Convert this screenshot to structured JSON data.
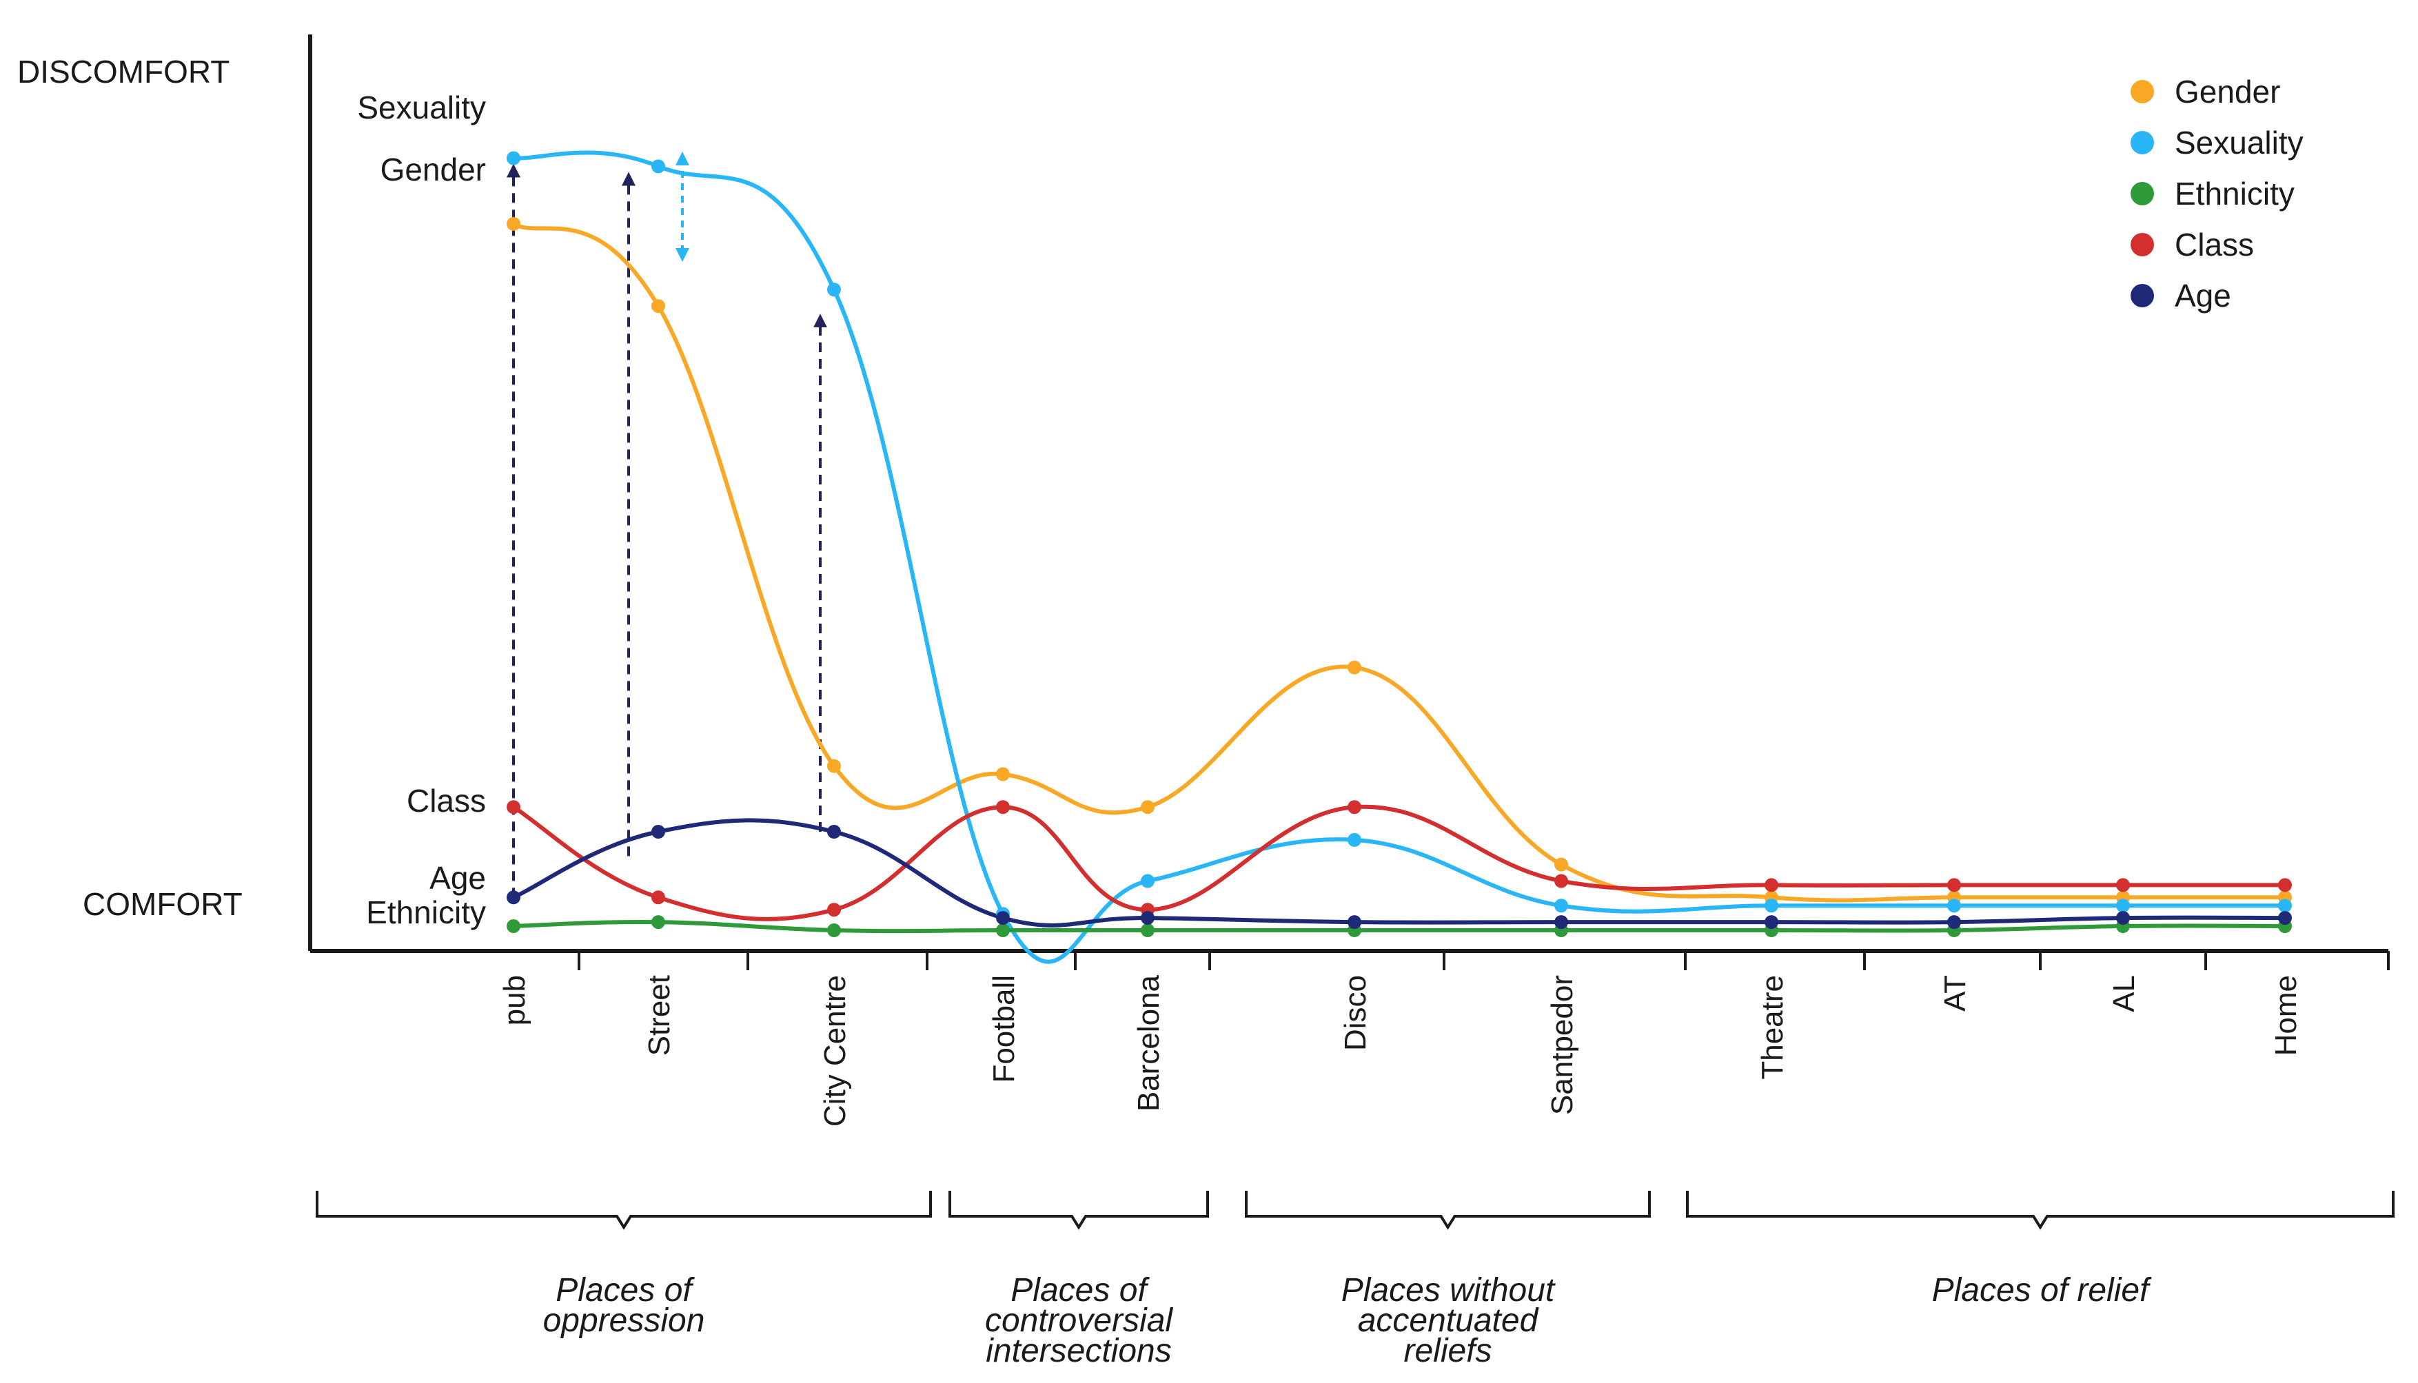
{
  "chart_data": {
    "type": "line",
    "y_top_label": "DISCOMFORT",
    "y_bottom_label": "COMFORT",
    "ylim": [
      0,
      100
    ],
    "categories": [
      "pub",
      "Street",
      "City Centre",
      "Football",
      "Barcelona",
      "Disco",
      "Santpedor",
      "Theatre",
      "AT",
      "AL",
      "Home"
    ],
    "series": [
      {
        "name": "Gender",
        "color": "#f9a825",
        "values": [
          86,
          76,
          20,
          19,
          15,
          32,
          8,
          4,
          4,
          4,
          4
        ]
      },
      {
        "name": "Sexuality",
        "color": "#29b6f6",
        "values": [
          94,
          93,
          78,
          2,
          6,
          11,
          3,
          3,
          3,
          3,
          3
        ]
      },
      {
        "name": "Ethnicity",
        "color": "#2e9a3a",
        "values": [
          0.5,
          1,
          0,
          0,
          0,
          0,
          0,
          0,
          0,
          0.5,
          0.5
        ]
      },
      {
        "name": "Class",
        "color": "#d32f2f",
        "values": [
          15,
          4,
          2.5,
          15,
          2.5,
          15,
          6,
          5.5,
          5.5,
          5.5,
          5.5
        ]
      },
      {
        "name": "Age",
        "color": "#1e2a78",
        "values": [
          4,
          12,
          12,
          1.5,
          1.5,
          1,
          1,
          1,
          1,
          1.5,
          1.5
        ]
      }
    ],
    "line_labels": [
      {
        "text": "Sexuality",
        "series": "Sexuality"
      },
      {
        "text": "Gender",
        "series": "Gender"
      },
      {
        "text": "Class",
        "series": "Class"
      },
      {
        "text": "Age",
        "series": "Age"
      },
      {
        "text": "Ethnicity",
        "series": "Ethnicity"
      }
    ],
    "groups": [
      {
        "label": "Places of oppression",
        "lines": [
          "Places of",
          "oppression"
        ]
      },
      {
        "label": "Places of controversial intersections",
        "lines": [
          "Places of",
          "controversial",
          "intersections"
        ]
      },
      {
        "label": "Places without accentuated reliefs",
        "lines": [
          "Places without",
          "accentuated",
          "reliefs"
        ]
      },
      {
        "label": "Places of relief",
        "lines": [
          "Places of relief"
        ]
      }
    ],
    "legend": [
      "Gender",
      "Sexuality",
      "Ethnicity",
      "Class",
      "Age"
    ],
    "legend_position": "top-right",
    "grid": false
  }
}
